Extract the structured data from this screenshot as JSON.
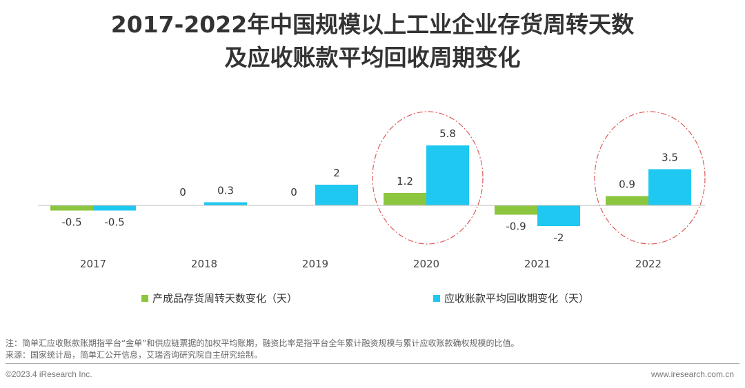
{
  "title_line1": "2017-2022年中国规模以上工业企业存货周转天数",
  "title_line2": "及应收账款平均回收周期变化",
  "chart_data": {
    "type": "bar",
    "categories": [
      "2017",
      "2018",
      "2019",
      "2020",
      "2021",
      "2022"
    ],
    "series": [
      {
        "name": "产成品存货周转天数变化（天）",
        "color": "#8cc63f",
        "values": [
          -0.5,
          0,
          0,
          1.2,
          -0.9,
          0.9
        ]
      },
      {
        "name": "应收账款平均回收期变化（天）",
        "color": "#1ec8f0",
        "values": [
          -0.5,
          0.3,
          2,
          5.8,
          -2,
          3.5
        ]
      }
    ],
    "legend": "bottom",
    "grid": false,
    "highlighted_categories": [
      "2020",
      "2022"
    ]
  },
  "note": "注：简单汇应收账款账期指平台“金单”和供应链票据的加权平均账期，融资比率是指平台全年累计融资规模与累计应收账款确权规模的比值。",
  "source": "来源：国家统计局，简单汇公开信息，艾瑞咨询研究院自主研究绘制。",
  "copyright": "©2023.4 iResearch Inc.",
  "url": "www.iresearch.com.cn"
}
